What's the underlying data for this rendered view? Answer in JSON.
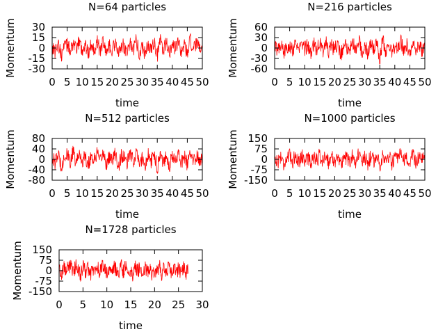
{
  "chart_data": [
    {
      "type": "line",
      "title": "N=64 particles",
      "xlabel": "time",
      "ylabel": "Momentum",
      "xlim": [
        0,
        50
      ],
      "ylim": [
        -30,
        30
      ],
      "xticks": [
        "0",
        "5",
        "10",
        "15",
        "20",
        "25",
        "30",
        "35",
        "40",
        "45",
        "50"
      ],
      "yticks": [
        "30",
        "15",
        "0",
        "-15",
        "-30"
      ],
      "ytick_values": [
        30,
        15,
        0,
        -15,
        -30
      ],
      "xtick_values": [
        0,
        5,
        10,
        15,
        20,
        25,
        30,
        35,
        40,
        45,
        50
      ],
      "series_color": "#ff0000",
      "series": [
        {
          "x": [
            0,
            1,
            2,
            3,
            4,
            5,
            6,
            7,
            8,
            9,
            10,
            11,
            12,
            13,
            14,
            15,
            16,
            17,
            18,
            19,
            20,
            21,
            22,
            23,
            24,
            25,
            26,
            27,
            28,
            29,
            30,
            31,
            32,
            33,
            34,
            35,
            36,
            37,
            38,
            39,
            40,
            41,
            42,
            43,
            44,
            45,
            46,
            47,
            48,
            49,
            50
          ],
          "y": [
            5,
            -8,
            12,
            -20,
            3,
            9,
            -4,
            15,
            -10,
            18,
            -6,
            8,
            -14,
            11,
            -3,
            16,
            -9,
            22,
            -12,
            6,
            -5,
            14,
            -18,
            9,
            3,
            -11,
            17,
            -7,
            20,
            -13,
            4,
            -16,
            10,
            -6,
            15,
            -22,
            24,
            -8,
            13,
            -15,
            7,
            -4,
            19,
            -10,
            8,
            -17,
            21,
            -9,
            12,
            -5,
            6
          ]
        }
      ]
    },
    {
      "type": "line",
      "title": "N=216 particles",
      "xlabel": "time",
      "ylabel": "Momentum",
      "xlim": [
        0,
        50
      ],
      "ylim": [
        -60,
        60
      ],
      "xticks": [
        "0",
        "5",
        "10",
        "15",
        "20",
        "25",
        "30",
        "35",
        "40",
        "45",
        "50"
      ],
      "yticks": [
        "60",
        "30",
        "0",
        "-30",
        "-60"
      ],
      "ytick_values": [
        60,
        30,
        0,
        -30,
        -60
      ],
      "xtick_values": [
        0,
        5,
        10,
        15,
        20,
        25,
        30,
        35,
        40,
        45,
        50
      ],
      "series_color": "#ff0000",
      "series": [
        {
          "x": [
            0,
            1,
            2,
            3,
            4,
            5,
            6,
            7,
            8,
            9,
            10,
            11,
            12,
            13,
            14,
            15,
            16,
            17,
            18,
            19,
            20,
            21,
            22,
            23,
            24,
            25,
            26,
            27,
            28,
            29,
            30,
            31,
            32,
            33,
            34,
            35,
            36,
            37,
            38,
            39,
            40,
            41,
            42,
            43,
            44,
            45,
            46,
            47,
            48,
            49,
            50
          ],
          "y": [
            10,
            -15,
            22,
            -30,
            8,
            18,
            -12,
            35,
            -20,
            28,
            -8,
            16,
            -25,
            20,
            -6,
            30,
            -18,
            40,
            -22,
            12,
            -10,
            26,
            -35,
            15,
            6,
            -20,
            32,
            -14,
            45,
            -28,
            10,
            -30,
            20,
            -12,
            28,
            -55,
            38,
            -16,
            24,
            -30,
            14,
            -8,
            34,
            -20,
            16,
            -28,
            30,
            -18,
            22,
            -10,
            12
          ]
        }
      ]
    },
    {
      "type": "line",
      "title": "N=512 particles",
      "xlabel": "time",
      "ylabel": "Momentum",
      "xlim": [
        0,
        50
      ],
      "ylim": [
        -80,
        80
      ],
      "xticks": [
        "0",
        "5",
        "10",
        "15",
        "20",
        "25",
        "30",
        "35",
        "40",
        "45",
        "50"
      ],
      "yticks": [
        "80",
        "40",
        "0",
        "-40",
        "-80"
      ],
      "ytick_values": [
        80,
        40,
        0,
        -40,
        -80
      ],
      "xtick_values": [
        0,
        5,
        10,
        15,
        20,
        25,
        30,
        35,
        40,
        45,
        50
      ],
      "series_color": "#ff0000",
      "series": [
        {
          "x": [
            0,
            1,
            2,
            3,
            4,
            5,
            6,
            7,
            8,
            9,
            10,
            11,
            12,
            13,
            14,
            15,
            16,
            17,
            18,
            19,
            20,
            21,
            22,
            23,
            24,
            25,
            26,
            27,
            28,
            29,
            30,
            31,
            32,
            33,
            34,
            35,
            36,
            37,
            38,
            39,
            40,
            41,
            42,
            43,
            44,
            45,
            46,
            47,
            48,
            49,
            50
          ],
          "y": [
            15,
            -25,
            35,
            -45,
            10,
            28,
            -18,
            50,
            -30,
            42,
            -12,
            24,
            -38,
            30,
            -10,
            45,
            -28,
            55,
            -35,
            18,
            -15,
            40,
            -52,
            22,
            8,
            -30,
            48,
            -20,
            58,
            -42,
            14,
            -45,
            30,
            -18,
            42,
            -60,
            50,
            -24,
            36,
            -45,
            20,
            -12,
            50,
            -30,
            24,
            -42,
            44,
            -26,
            32,
            -15,
            18
          ]
        }
      ]
    },
    {
      "type": "line",
      "title": "N=1000 particles",
      "xlabel": "time",
      "ylabel": "Momentum",
      "xlim": [
        0,
        50
      ],
      "ylim": [
        -150,
        150
      ],
      "xticks": [
        "0",
        "5",
        "10",
        "15",
        "20",
        "25",
        "30",
        "35",
        "40",
        "45",
        "50"
      ],
      "yticks": [
        "150",
        "75",
        "0",
        "-75",
        "-150"
      ],
      "ytick_values": [
        150,
        75,
        0,
        -75,
        -150
      ],
      "xtick_values": [
        0,
        5,
        10,
        15,
        20,
        25,
        30,
        35,
        40,
        45,
        50
      ],
      "series_color": "#ff0000",
      "series": [
        {
          "x": [
            0,
            1,
            2,
            3,
            4,
            5,
            6,
            7,
            8,
            9,
            10,
            11,
            12,
            13,
            14,
            15,
            16,
            17,
            18,
            19,
            20,
            21,
            22,
            23,
            24,
            25,
            26,
            27,
            28,
            29,
            30,
            31,
            32,
            33,
            34,
            35,
            36,
            37,
            38,
            39,
            40,
            41,
            42,
            43,
            44,
            45,
            46,
            47,
            48,
            49,
            50
          ],
          "y": [
            20,
            -35,
            45,
            -60,
            15,
            38,
            -25,
            70,
            -40,
            55,
            -18,
            32,
            -50,
            40,
            -14,
            60,
            -38,
            75,
            -45,
            25,
            -20,
            52,
            -70,
            30,
            12,
            -40,
            65,
            -28,
            80,
            -55,
            18,
            -60,
            40,
            -24,
            56,
            -78,
            68,
            -32,
            48,
            -60,
            26,
            -16,
            66,
            -40,
            32,
            -56,
            60,
            -35,
            42,
            -20,
            25
          ]
        }
      ]
    },
    {
      "type": "line",
      "title": "N=1728 particles",
      "xlabel": "time",
      "ylabel": "Momentum",
      "xlim": [
        0,
        30
      ],
      "ylim": [
        -150,
        150
      ],
      "xticks": [
        "0",
        "5",
        "10",
        "15",
        "20",
        "25",
        "30"
      ],
      "yticks": [
        "150",
        "75",
        "0",
        "-75",
        "-150"
      ],
      "ytick_values": [
        150,
        75,
        0,
        -75,
        -150
      ],
      "xtick_values": [
        0,
        5,
        10,
        15,
        20,
        25,
        30
      ],
      "series_color": "#ff0000",
      "series": [
        {
          "x": [
            0,
            0.5,
            1,
            1.5,
            2,
            2.5,
            3,
            3.5,
            4,
            4.5,
            5,
            5.5,
            6,
            6.5,
            7,
            7.5,
            8,
            8.5,
            9,
            9.5,
            10,
            10.5,
            11,
            11.5,
            12,
            12.5,
            13,
            13.5,
            14,
            14.5,
            15,
            15.5,
            16,
            16.5,
            17,
            17.5,
            18,
            18.5,
            19,
            19.5,
            20,
            20.5,
            21,
            21.5,
            22,
            22.5,
            23,
            23.5,
            24,
            24.5,
            25,
            25.5,
            26,
            26.5,
            27
          ],
          "y": [
            30,
            -40,
            60,
            -20,
            80,
            40,
            -30,
            70,
            20,
            -50,
            50,
            -10,
            40,
            -60,
            30,
            -20,
            60,
            -40,
            80,
            20,
            -30,
            50,
            -70,
            40,
            10,
            -50,
            70,
            -20,
            90,
            -40,
            20,
            -60,
            50,
            -10,
            40,
            -70,
            60,
            -30,
            50,
            -60,
            30,
            -20,
            60,
            -40,
            40,
            -50,
            60,
            -30,
            40,
            -20,
            30,
            -40,
            50,
            -30,
            20
          ]
        }
      ]
    }
  ]
}
